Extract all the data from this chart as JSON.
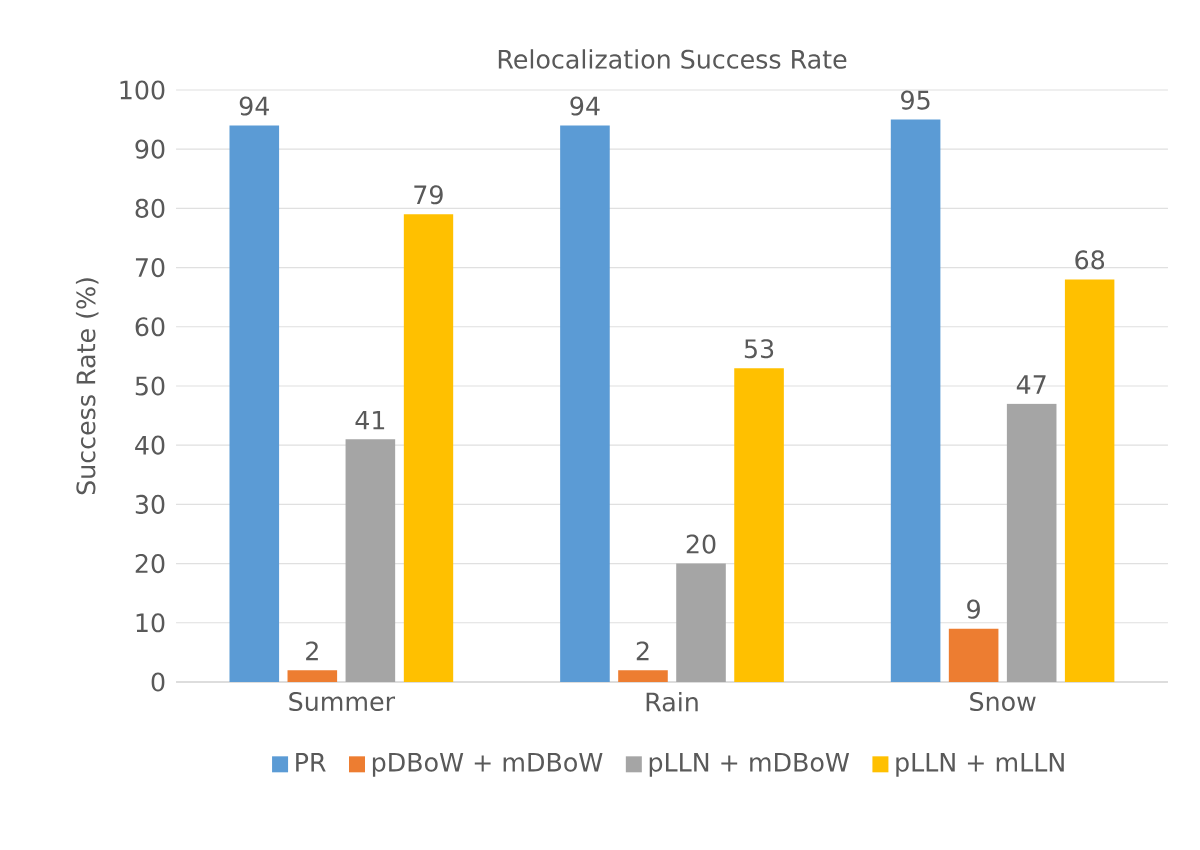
{
  "chart_data": {
    "type": "bar",
    "title": "Relocalization Success Rate",
    "ylabel": "Success Rate (%)",
    "categories": [
      "Summer",
      "Rain",
      "Snow"
    ],
    "series": [
      {
        "name": "PR",
        "color": "#5b9bd5",
        "values": [
          94,
          94,
          95
        ]
      },
      {
        "name": "pDBoW + mDBoW",
        "color": "#ed7d31",
        "values": [
          2,
          2,
          9
        ]
      },
      {
        "name": "pLLN + mDBoW",
        "color": "#a5a5a5",
        "values": [
          41,
          20,
          47
        ]
      },
      {
        "name": "pLLN + mLLN",
        "color": "#ffc000",
        "values": [
          79,
          53,
          68
        ]
      }
    ],
    "ylim": [
      0,
      100
    ],
    "yticks": [
      0,
      10,
      20,
      30,
      40,
      50,
      60,
      70,
      80,
      90,
      100
    ],
    "grid": "y",
    "legend": "bottom",
    "data_labels": true
  }
}
